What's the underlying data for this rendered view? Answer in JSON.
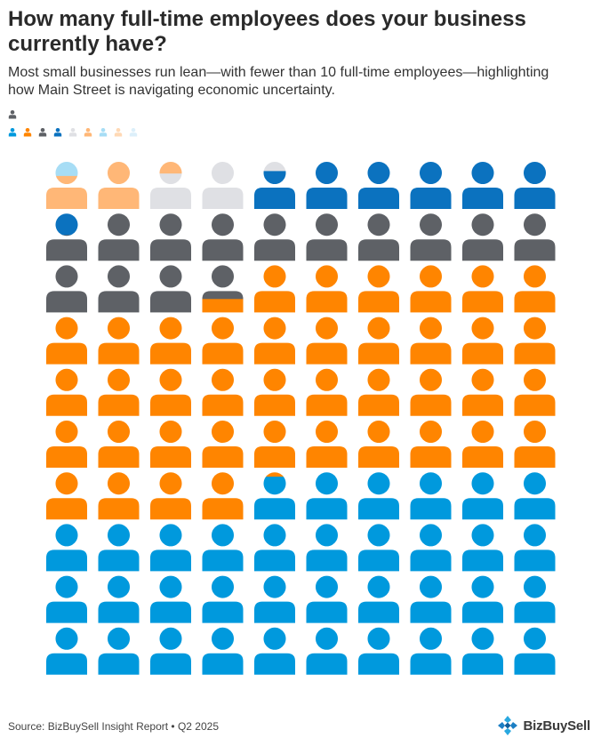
{
  "header": {
    "title": "How many full-time employees does your business currently have?",
    "subtitle": "Most small businesses run lean—with fewer than 10 full-time employees—highlighting how Main Street is navigating economic uncertainty."
  },
  "footer": {
    "source": "Source: BizBuySell Insight Report • Q2 2025",
    "logo_text": "BizBuySell"
  },
  "chart_data": {
    "type": "pictograph",
    "unit": "each icon = 1% of respondents",
    "total_icons": 100,
    "legend_placement": "top-left",
    "series": [
      {
        "color": "#0099DD",
        "value": 35.9
      },
      {
        "color": "#FF8500",
        "value": 40.4
      },
      {
        "color": "#5E6166",
        "value": 13.25
      },
      {
        "color": "#0B72BF",
        "value": 6.25
      },
      {
        "color": "#DFE0E4",
        "value": 1.95
      },
      {
        "color": "#FFB777",
        "value": 1.95
      },
      {
        "color": "#A7DDF5",
        "value": 1.0
      },
      {
        "color": "#FFD9B5",
        "value": 0.85
      },
      {
        "color": "#DCEFFA",
        "value": 0.45
      }
    ]
  }
}
